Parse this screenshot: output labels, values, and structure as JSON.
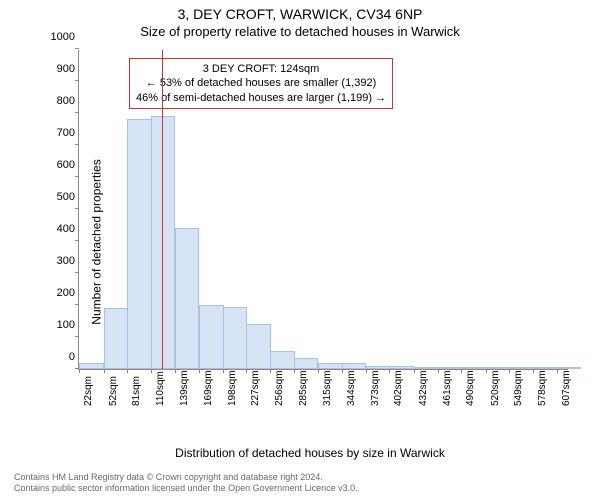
{
  "title": "3, DEY CROFT, WARWICK, CV34 6NP",
  "subtitle": "Size of property relative to detached houses in Warwick",
  "ylabel": "Number of detached properties",
  "xlabel": "Distribution of detached houses by size in Warwick",
  "chart": {
    "type": "histogram",
    "background_color": "#ffffff",
    "axis_color": "#888888",
    "bar_fill": "#d6e3f5",
    "bar_stroke": "#a9c1e3",
    "marker_color": "#cc3333",
    "callout_border": "#cc3333",
    "ylim": [
      0,
      1000
    ],
    "ytick_step": 100,
    "xticks": [
      "22sqm",
      "52sqm",
      "81sqm",
      "110sqm",
      "139sqm",
      "169sqm",
      "198sqm",
      "227sqm",
      "256sqm",
      "285sqm",
      "315sqm",
      "344sqm",
      "373sqm",
      "402sqm",
      "432sqm",
      "461sqm",
      "490sqm",
      "520sqm",
      "549sqm",
      "578sqm",
      "607sqm"
    ],
    "bins": [
      {
        "x": 22,
        "count": 20
      },
      {
        "x": 52,
        "count": 190
      },
      {
        "x": 81,
        "count": 780
      },
      {
        "x": 110,
        "count": 790
      },
      {
        "x": 139,
        "count": 440
      },
      {
        "x": 169,
        "count": 200
      },
      {
        "x": 198,
        "count": 195
      },
      {
        "x": 227,
        "count": 140
      },
      {
        "x": 256,
        "count": 55
      },
      {
        "x": 285,
        "count": 35
      },
      {
        "x": 315,
        "count": 20
      },
      {
        "x": 344,
        "count": 20
      },
      {
        "x": 373,
        "count": 10
      },
      {
        "x": 402,
        "count": 8
      },
      {
        "x": 432,
        "count": 5
      },
      {
        "x": 461,
        "count": 3
      },
      {
        "x": 490,
        "count": 3
      },
      {
        "x": 520,
        "count": 2
      },
      {
        "x": 549,
        "count": 2
      },
      {
        "x": 578,
        "count": 2
      },
      {
        "x": 607,
        "count": 2
      }
    ],
    "marker_x": 124,
    "xlim": [
      22,
      622
    ],
    "title_fontsize": 14,
    "label_fontsize": 12,
    "tick_fontsize": 11
  },
  "callout": {
    "line1": "3 DEY CROFT: 124sqm",
    "line2": "← 53% of detached houses are smaller (1,392)",
    "line3": "46% of semi-detached houses are larger (1,199) →"
  },
  "footer": {
    "line1": "Contains HM Land Registry data © Crown copyright and database right 2024.",
    "line2": "Contains public sector information licensed under the Open Government Licence v3.0."
  }
}
